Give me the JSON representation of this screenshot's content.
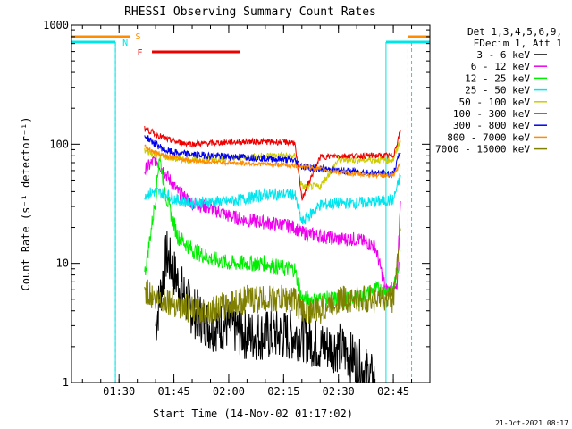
{
  "chart_data": {
    "type": "line",
    "title": "RHESSI Observing Summary Count Rates",
    "xlabel": "Start Time (14-Nov-02 01:17:02)",
    "ylabel": "Count Rate (s⁻¹ detector⁻¹)",
    "y_scale": "log",
    "xlim": [
      "01:17",
      "02:55"
    ],
    "ylim": [
      1,
      1000
    ],
    "x_ticks": [
      "01:30",
      "01:45",
      "02:00",
      "02:15",
      "02:30",
      "02:45"
    ],
    "y_ticks": [
      "1",
      "10",
      "100",
      "1000"
    ],
    "legend": {
      "placement": "right-outside",
      "header": [
        "Det 1,3,4,5,6,9,",
        "FDecim 1, Att 1"
      ]
    },
    "timestamp": "21-Oct-2021 08:17",
    "flags": [
      {
        "label": "N",
        "color": "#00e5e5"
      },
      {
        "label": "S",
        "color": "#ff8c00"
      },
      {
        "label": "F",
        "color": "#ee0000"
      }
    ],
    "series": [
      {
        "name": "3 - 6 keV",
        "color": "#000000",
        "x": [
          "01:40",
          "01:43",
          "01:46",
          "01:50",
          "01:55",
          "02:00",
          "02:05",
          "02:10",
          "02:15",
          "02:20",
          "02:25",
          "02:30",
          "02:35",
          "02:40"
        ],
        "y": [
          3,
          12,
          7,
          4,
          3,
          3,
          2.5,
          2.5,
          2.5,
          2.5,
          2,
          2,
          1.5,
          1
        ]
      },
      {
        "name": "6 - 12 keV",
        "color": "#ee00ee",
        "x": [
          "01:37",
          "01:40",
          "01:43",
          "01:46",
          "01:50",
          "01:55",
          "02:00",
          "02:05",
          "02:10",
          "02:15",
          "02:18",
          "02:20",
          "02:25",
          "02:30",
          "02:35",
          "02:40",
          "02:43",
          "02:46",
          "02:47"
        ],
        "y": [
          60,
          75,
          55,
          40,
          32,
          29,
          25,
          23,
          22,
          21,
          20,
          18,
          17,
          16,
          16,
          14,
          6,
          6,
          40
        ]
      },
      {
        "name": "12 - 25 keV",
        "color": "#00ee00",
        "x": [
          "01:37",
          "01:40",
          "01:41",
          "01:43",
          "01:46",
          "01:50",
          "01:55",
          "02:00",
          "02:05",
          "02:10",
          "02:15",
          "02:18",
          "02:20",
          "02:25",
          "02:30",
          "02:35",
          "02:40",
          "02:45",
          "02:47"
        ],
        "y": [
          8,
          35,
          80,
          35,
          17,
          13,
          11,
          10,
          10,
          10,
          9,
          9,
          5,
          5,
          5,
          5,
          6,
          6,
          12
        ]
      },
      {
        "name": "25 - 50 keV",
        "color": "#00e5ee",
        "x": [
          "01:37",
          "01:40",
          "01:43",
          "01:46",
          "01:50",
          "01:55",
          "02:00",
          "02:05",
          "02:10",
          "02:15",
          "02:18",
          "02:20",
          "02:25",
          "02:30",
          "02:35",
          "02:40",
          "02:45",
          "02:47"
        ],
        "y": [
          38,
          40,
          38,
          34,
          32,
          33,
          33,
          35,
          38,
          38,
          38,
          22,
          31,
          32,
          32,
          33,
          34,
          55
        ]
      },
      {
        "name": "50 - 100 keV",
        "color": "#cccc00",
        "x": [
          "01:37",
          "01:40",
          "01:43",
          "01:46",
          "01:50",
          "01:55",
          "02:00",
          "02:05",
          "02:10",
          "02:15",
          "02:18",
          "02:20",
          "02:25",
          "02:30",
          "02:35",
          "02:40",
          "02:45",
          "02:47"
        ],
        "y": [
          88,
          82,
          78,
          75,
          74,
          75,
          76,
          78,
          80,
          80,
          79,
          44,
          44,
          74,
          74,
          74,
          74,
          110
        ]
      },
      {
        "name": "100 - 300 keV",
        "color": "#ee0000",
        "x": [
          "01:37",
          "01:40",
          "01:43",
          "01:46",
          "01:50",
          "01:55",
          "02:00",
          "02:05",
          "02:10",
          "02:15",
          "02:18",
          "02:20",
          "02:25",
          "02:30",
          "02:35",
          "02:40",
          "02:45",
          "02:47"
        ],
        "y": [
          135,
          122,
          110,
          104,
          100,
          102,
          104,
          105,
          105,
          104,
          104,
          35,
          78,
          80,
          80,
          80,
          80,
          130
        ]
      },
      {
        "name": "300 - 800 keV",
        "color": "#0000ee",
        "x": [
          "01:37",
          "01:40",
          "01:43",
          "01:46",
          "01:50",
          "01:55",
          "02:00",
          "02:05",
          "02:10",
          "02:15",
          "02:18",
          "02:20",
          "02:25",
          "02:30",
          "02:35",
          "02:40",
          "02:45",
          "02:47"
        ],
        "y": [
          118,
          100,
          88,
          84,
          82,
          80,
          79,
          78,
          76,
          74,
          73,
          65,
          62,
          60,
          59,
          57,
          56,
          90
        ]
      },
      {
        "name": "800 - 7000 keV",
        "color": "#ff8c00",
        "x": [
          "01:37",
          "01:40",
          "01:43",
          "01:46",
          "01:50",
          "01:55",
          "02:00",
          "02:05",
          "02:10",
          "02:15",
          "02:18",
          "02:20",
          "02:25",
          "02:30",
          "02:35",
          "02:40",
          "02:45",
          "02:47"
        ],
        "y": [
          95,
          85,
          80,
          76,
          73,
          71,
          70,
          69,
          68,
          67,
          66,
          65,
          62,
          58,
          56,
          55,
          54,
          70
        ]
      },
      {
        "name": "7000 - 15000 keV",
        "color": "#808000",
        "x": [
          "01:37",
          "01:40",
          "01:43",
          "01:46",
          "01:50",
          "01:55",
          "02:00",
          "02:05",
          "02:10",
          "02:15",
          "02:18",
          "02:20",
          "02:25",
          "02:30",
          "02:35",
          "02:40",
          "02:45",
          "02:47"
        ],
        "y": [
          6,
          5,
          5,
          4.5,
          4,
          4,
          4.5,
          5,
          5,
          5,
          5,
          4,
          4,
          5,
          5,
          5,
          5,
          20
        ]
      }
    ]
  }
}
